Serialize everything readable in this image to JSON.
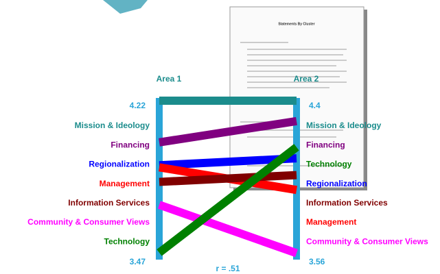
{
  "chart_data": {
    "type": "ladder",
    "left_axis": {
      "label": "Area 1",
      "lim": [
        3.47,
        4.22
      ],
      "ticks": [
        3.47,
        4.22
      ]
    },
    "right_axis": {
      "label": "Area 2",
      "lim": [
        3.56,
        4.4
      ],
      "ticks": [
        3.56,
        4.4
      ]
    },
    "annotation": "r = .51",
    "axis_color": "#2aa5d8",
    "background_document_title": "Statements By Cluster",
    "series": [
      {
        "name": "Mission & Ideology",
        "color": "#1b8c8c",
        "values": [
          4.22,
          4.4
        ]
      },
      {
        "name": "Financing",
        "color": "#800080",
        "values": [
          4.02,
          4.29
        ]
      },
      {
        "name": "Regionalization",
        "color": "#0000ff",
        "values": [
          3.91,
          4.09
        ]
      },
      {
        "name": "Management",
        "color": "#ff0000",
        "values": [
          3.9,
          3.92
        ]
      },
      {
        "name": "Information Services",
        "color": "#800000",
        "values": [
          3.83,
          4.0
        ]
      },
      {
        "name": "Community & Consumer Views",
        "color": "#ff00ff",
        "values": [
          3.72,
          3.58
        ]
      },
      {
        "name": "Technology",
        "color": "#008000",
        "values": [
          3.49,
          4.15
        ]
      }
    ]
  }
}
